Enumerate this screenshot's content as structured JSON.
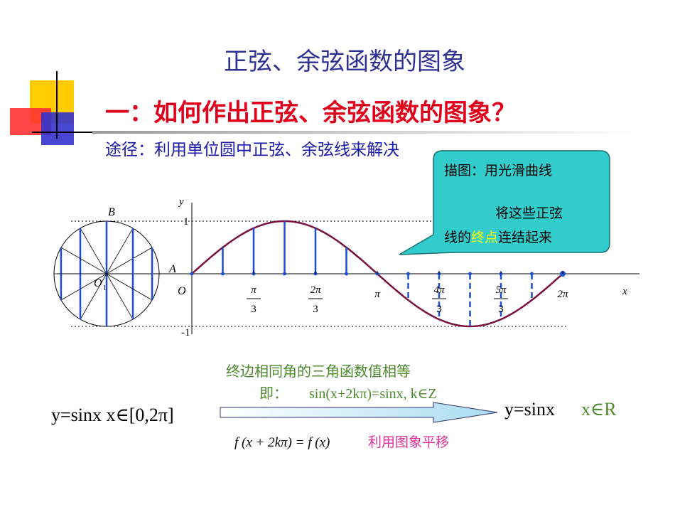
{
  "title": "正弦、余弦函数的图象",
  "heading": "一：如何作出正弦、余弦函数的图象？",
  "method": "途径：利用单位圆中正弦、余弦线来解决",
  "callout": {
    "line1": "描图：用光滑曲线",
    "line2": "将这些正弦",
    "line3_start": "线的",
    "line3_highlight": "终点",
    "line3_end": "连结起来"
  },
  "graph": {
    "y_axis": "y",
    "x_axis": "x",
    "point_b": "B",
    "point_a": "A",
    "circle_center": "O",
    "circle_center_sub": "1",
    "origin": "O",
    "one": "1",
    "minus_one": "-1",
    "ticks": [
      {
        "num": "π",
        "den": "3"
      },
      {
        "num": "2π",
        "den": "3"
      },
      {
        "num": "π"
      },
      {
        "num": "4π",
        "den": "3"
      },
      {
        "num": "5π",
        "den": "3"
      },
      {
        "num": "2π"
      }
    ]
  },
  "bottom": {
    "note": "终边相同角的三角函数值相等",
    "ie": "即：",
    "identity": "sin(x+2kπ)=sinx,  k∈Z",
    "left": "y=sinx   x∈[0,2π]",
    "right_func": "y=sinx",
    "right_domain": "x∈R",
    "formula": "f (x + 2kπ) = f (x)",
    "formula_note": "利用图象平移"
  }
}
